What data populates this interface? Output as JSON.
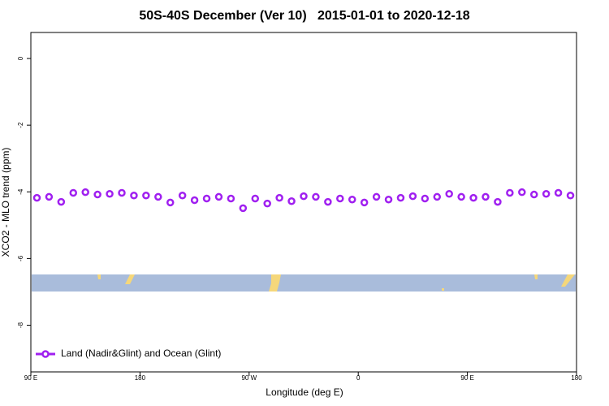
{
  "chart_data": {
    "type": "line",
    "title": "50S-40S December (Ver 10)   2015-01-01 to 2020-12-18",
    "x_label": "Longitude (deg E)",
    "y_label": "XCO2 - MLO trend (ppm)",
    "xlim": [
      90,
      540
    ],
    "xticks": [
      {
        "value": 90,
        "label": "90 E"
      },
      180,
      {
        "value": 270,
        "label": "90 W"
      },
      {
        "value": 360,
        "label": "0"
      },
      {
        "value": 450,
        "label": "90 E"
      },
      {
        "value": 540,
        "label": "180"
      }
    ],
    "ylim": [
      -9.4,
      0.78
    ],
    "yticks": [
      0,
      -2,
      -4,
      -6,
      -8
    ],
    "legend": "bottom-left",
    "x": [
      95,
      105,
      115,
      125,
      135,
      145,
      155,
      165,
      175,
      185,
      195,
      205,
      215,
      225,
      235,
      245,
      255,
      265,
      275,
      285,
      295,
      305,
      315,
      325,
      335,
      345,
      355,
      365,
      375,
      385,
      395,
      405,
      415,
      425,
      435,
      445,
      455,
      465,
      475,
      485,
      495,
      505,
      515,
      525,
      535
    ],
    "series": [
      {
        "name": "Land (Nadir&Glint) and Ocean (Glint)",
        "color": "#a020f0",
        "values": [
          -4.18,
          -4.15,
          -4.3,
          -4.03,
          -4.01,
          -4.08,
          -4.06,
          -4.03,
          -4.11,
          -4.11,
          -4.15,
          -4.32,
          -4.11,
          -4.25,
          -4.2,
          -4.15,
          -4.2,
          -4.49,
          -4.2,
          -4.35,
          -4.18,
          -4.28,
          -4.13,
          -4.15,
          -4.3,
          -4.2,
          -4.23,
          -4.32,
          -4.15,
          -4.23,
          -4.18,
          -4.13,
          -4.2,
          -4.15,
          -4.06,
          -4.15,
          -4.18,
          -4.15,
          -4.3,
          -4.03,
          -4.01,
          -4.08,
          -4.06,
          -4.03,
          -4.11
        ]
      }
    ]
  }
}
